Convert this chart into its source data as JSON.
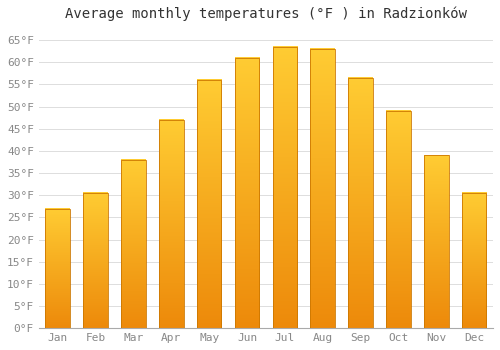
{
  "title": "Average monthly temperatures (°F ) in Radzionków",
  "months": [
    "Jan",
    "Feb",
    "Mar",
    "Apr",
    "May",
    "Jun",
    "Jul",
    "Aug",
    "Sep",
    "Oct",
    "Nov",
    "Dec"
  ],
  "values": [
    27,
    30.5,
    38,
    47,
    56,
    61,
    63.5,
    63,
    56.5,
    49,
    39,
    30.5
  ],
  "bar_color_top": "#FFBB33",
  "bar_color_bottom": "#FF9500",
  "bar_edge_color": "#CC7700",
  "background_color": "#FFFFFF",
  "plot_bg_color": "#FFFFFF",
  "grid_color": "#DDDDDD",
  "ylim": [
    0,
    68
  ],
  "yticks": [
    0,
    5,
    10,
    15,
    20,
    25,
    30,
    35,
    40,
    45,
    50,
    55,
    60,
    65
  ],
  "title_fontsize": 10,
  "tick_fontsize": 8,
  "tick_color": "#888888",
  "spine_color": "#AAAAAA"
}
